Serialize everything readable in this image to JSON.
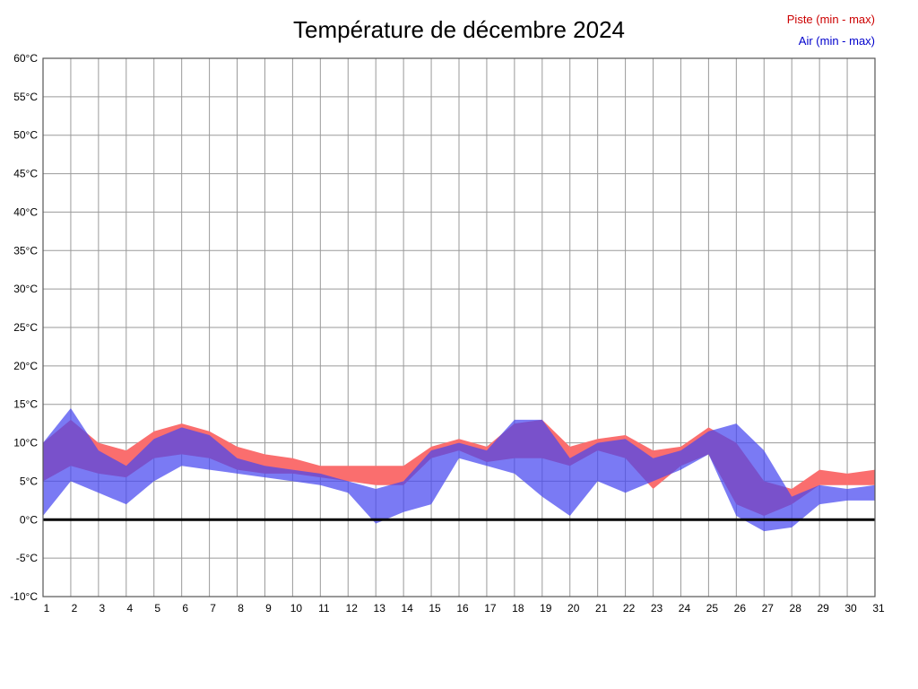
{
  "chart_data": {
    "type": "area",
    "title": "Température de décembre 2024",
    "xlabel": "",
    "ylabel": "",
    "ylim": [
      -10,
      60
    ],
    "y_tick_step": 5,
    "y_tick_suffix": "°C",
    "grid": true,
    "legend_position": "top-right",
    "legend": {
      "piste": "Piste (min - max)",
      "air": "Air (min - max)"
    },
    "categories": [
      1,
      2,
      3,
      4,
      5,
      6,
      7,
      8,
      9,
      10,
      11,
      12,
      13,
      14,
      15,
      16,
      17,
      18,
      19,
      20,
      21,
      22,
      23,
      24,
      25,
      26,
      27,
      28,
      29,
      30,
      31
    ],
    "series": [
      {
        "name": "Piste (min - max)",
        "kind": "band",
        "color": "#fa6e6e",
        "opacity": 1,
        "min": [
          5,
          7,
          6,
          5.5,
          8,
          8.5,
          8,
          6.5,
          6,
          6,
          5.5,
          5,
          4.5,
          4.5,
          8,
          9,
          7.5,
          8,
          8,
          7,
          9,
          8,
          4,
          7,
          8.5,
          2,
          0.5,
          2,
          4.5,
          4.5,
          4.5
        ],
        "max": [
          10,
          13,
          10,
          9,
          11.5,
          12.5,
          11.5,
          9.5,
          8.5,
          8,
          7,
          7,
          7,
          7,
          9.5,
          10.5,
          9.5,
          12.5,
          13,
          9.5,
          10.5,
          11,
          9,
          9.5,
          12,
          10,
          5,
          4,
          6.5,
          6,
          6.5
        ]
      },
      {
        "name": "Air (min - max)",
        "kind": "band",
        "color": "#4646f0",
        "opacity": 0.72,
        "min": [
          0.5,
          5,
          3.5,
          2,
          5,
          7,
          6.5,
          6,
          5.5,
          5,
          4.5,
          3.5,
          -0.5,
          1,
          2,
          8,
          7,
          6,
          3,
          0.5,
          5,
          3.5,
          5,
          6.5,
          8.5,
          0.5,
          -1.5,
          -1,
          2,
          2.5,
          2.5
        ],
        "max": [
          10,
          14.5,
          9,
          7,
          10.5,
          12,
          11,
          8,
          7,
          6.5,
          6,
          5,
          4,
          5,
          9,
          10,
          9,
          13,
          13,
          8,
          10,
          10.5,
          8,
          9,
          11.5,
          12.5,
          9,
          3,
          4.5,
          4,
          4.5
        ]
      }
    ],
    "zero_line": {
      "value": 0,
      "color": "#000000",
      "width": 3
    },
    "colors": {
      "grid": "#9a9a9a",
      "border": "#555555",
      "tick_text": "#000000",
      "legend_piste": "#cc0000",
      "legend_air": "#0000cc"
    }
  }
}
